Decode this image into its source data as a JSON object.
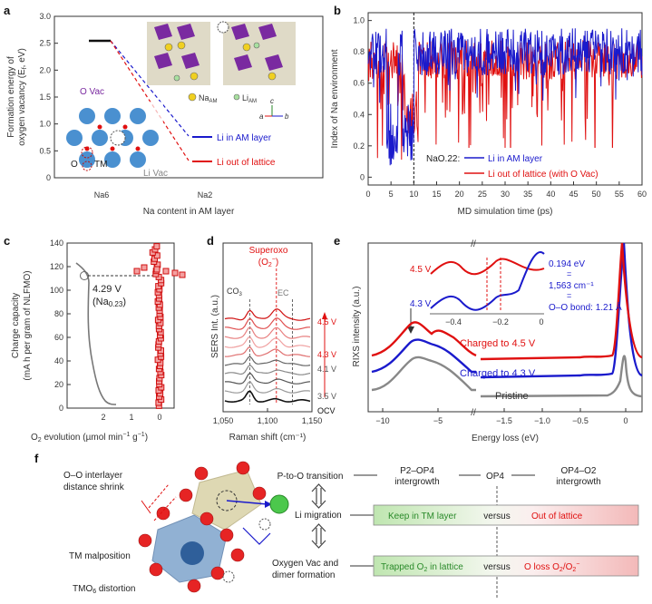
{
  "panels": {
    "a": "a",
    "b": "b",
    "c": "c",
    "d": "d",
    "e": "e",
    "f": "f"
  },
  "colors": {
    "blue": "#1a1acc",
    "red": "#e01010",
    "grey": "#888888",
    "pink": "#e87a7a",
    "green_bg": "#cfe9c4",
    "red_bg": "#f6c7c7"
  },
  "panel_a": {
    "ylabel_1": "Formation energy of",
    "ylabel_2": "oxygen vacancy (E",
    "ylabel_sub": "f",
    "ylabel_3": ", eV)",
    "xlabel": "Na content in AM layer",
    "legend": [
      "Li in AM layer",
      "Li out of lattice"
    ],
    "labels": {
      "o_vac": "O Vac",
      "o": "O",
      "tm": "TM",
      "li_vac": "Li Vac",
      "na_am": "Na",
      "na_sub": "AM",
      "li_am": "Li",
      "li_sub": "AM",
      "axis_a": "a",
      "axis_b": "b",
      "axis_c": "c"
    },
    "chart_data": {
      "type": "line",
      "x_categories": [
        "Na6",
        "Na2"
      ],
      "y_ticks": [
        "0",
        "0.5",
        "1.0",
        "1.5",
        "2.0",
        "2.5",
        "3.0"
      ],
      "ylim": [
        0,
        3.0
      ],
      "plateau": 2.5
    }
  },
  "panel_b": {
    "ylabel": "Index of Na environment",
    "xlabel": "MD simulation time (ps)",
    "legend_title": "NaO.22:",
    "legend": [
      "Li in AM layer",
      "Li out of lattice (with O Vac)"
    ],
    "chart_data": {
      "type": "line",
      "x_ticks": [
        "0",
        "5",
        "10",
        "15",
        "20",
        "25",
        "30",
        "35",
        "40",
        "45",
        "50",
        "55",
        "60"
      ],
      "y_ticks": [
        "0",
        "0.2",
        "0.4",
        "0.6",
        "0.8",
        "1.0"
      ],
      "xlim": [
        0,
        60
      ],
      "ylim": [
        -0.05,
        1.05
      ],
      "vline_x": 10
    }
  },
  "panel_c": {
    "ylabel_1": "Charge capacity",
    "ylabel_2": "(mA h per gram of NLFMO)",
    "xlabel_1": "O",
    "xlabel_sub": "2",
    "xlabel_2": " evolution (µmol min",
    "xlabel_sup1": "−1",
    "xlabel_3": " g",
    "xlabel_sup2": "−1",
    "xlabel_4": ")",
    "annotation_1": "4.29 V",
    "annotation_2": "(Na",
    "annotation_sub": "0.23",
    "annotation_3": ")",
    "chart_data": {
      "type": "scatter",
      "x_ticks": [
        "2",
        "1",
        "0"
      ],
      "y_ticks": [
        "0",
        "20",
        "40",
        "60",
        "80",
        "100",
        "120",
        "140"
      ],
      "ylim": [
        0,
        140
      ],
      "marker_capacity": 113
    }
  },
  "panel_d": {
    "ylabel": "SERS Int. (a.u.)",
    "xlabel": "Raman shift (cm⁻¹)",
    "superoxo_1": "Superoxo",
    "superoxo_2": "(O",
    "superoxo_sub": "2",
    "superoxo_sup": "−",
    "superoxo_3": ")",
    "co3": "CO",
    "co3_sub": "3",
    "ec": "EC",
    "voltages": [
      "4.5 V",
      "4.3 V",
      "4.1 V",
      "3.5 V",
      "OCV"
    ],
    "chart_data": {
      "type": "line",
      "x_ticks": [
        "1,050",
        "1,100",
        "1,150"
      ],
      "xlim": [
        1050,
        1150
      ],
      "vlines": [
        1080,
        1110,
        1128
      ]
    }
  },
  "panel_e": {
    "ylabel": "RIXS intensity (a.u.)",
    "xlabel": "Energy loss (eV)",
    "labels": [
      "Charged to 4.5 V",
      "Charged to 4.3 V",
      "Pristine"
    ],
    "inset": {
      "v45": "4.5 V",
      "v43": "4.3 V",
      "ev": "0.194 eV",
      "eq": "=",
      "cm": "1,563 cm⁻¹",
      "bond": "O–O bond: 1.21 Å",
      "x_ticks": [
        "−0.4",
        "−0.2",
        "0"
      ]
    },
    "chart_data": {
      "type": "line",
      "x_ticks": [
        "−10",
        "−5",
        "−1.5",
        "−1.0",
        "−0.5",
        "0"
      ],
      "break_marks": "//"
    }
  },
  "panel_f": {
    "left_labels": [
      "O–O interlayer",
      "distance shrink",
      "TM malposition",
      "TMO",
      "6",
      " distortion"
    ],
    "flow_top": [
      "P-to-O transition",
      "P2–OP4",
      "intergrowth",
      "OP4",
      "OP4–O2",
      "intergrowth"
    ],
    "li_migration": "Li migration",
    "keep": "Keep in TM layer",
    "versus": "versus",
    "out": "Out of lattice",
    "oxygen_vac_1": "Oxygen Vac and",
    "oxygen_vac_2": "dimer formation",
    "trapped": "Trapped O",
    "trapped_sub": "2",
    "trapped_2": " in lattice",
    "oloss": "O loss O",
    "oloss_sub": "2",
    "oloss_2": "/O",
    "oloss_sub2": "2",
    "oloss_sup": "−"
  }
}
